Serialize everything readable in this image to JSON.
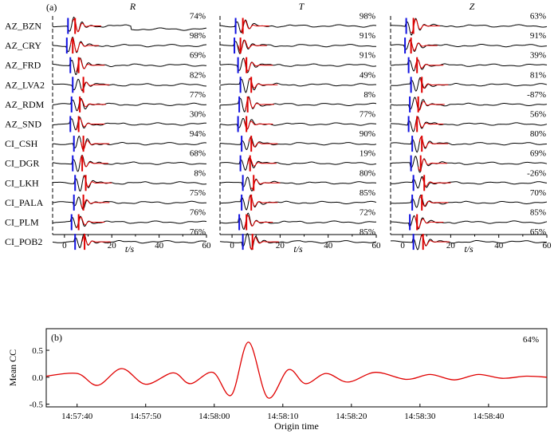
{
  "colors": {
    "observed": "#000000",
    "synthetic": "#e00000",
    "p_pick": "#1010e0",
    "s_pick": "#e00000",
    "mean_cc": "#e00000"
  },
  "panel_a": {
    "label": "(a)",
    "xlabel": "t/s",
    "xticks": [
      "0",
      "20",
      "40",
      "60"
    ],
    "xlim": [
      -5,
      60
    ],
    "stations": [
      "AZ_BZN",
      "AZ_CRY",
      "AZ_FRD",
      "AZ_LVA2",
      "AZ_RDM",
      "AZ_SND",
      "CI_CSH",
      "CI_DGR",
      "CI_LKH",
      "CI_PALA",
      "CI_PLM",
      "CI_POB2"
    ],
    "components": [
      {
        "name": "R",
        "cc": [
          "74%",
          "98%",
          "69%",
          "82%",
          "77%",
          "30%",
          "94%",
          "68%",
          "8%",
          "75%",
          "76%",
          "76%"
        ]
      },
      {
        "name": "T",
        "cc": [
          "98%",
          "91%",
          "91%",
          "49%",
          "8%",
          "77%",
          "90%",
          "19%",
          "80%",
          "85%",
          "72%",
          "85%"
        ]
      },
      {
        "name": "Z",
        "cc": [
          "63%",
          "91%",
          "39%",
          "81%",
          "-87%",
          "56%",
          "80%",
          "69%",
          "-26%",
          "70%",
          "85%",
          "65%"
        ]
      }
    ],
    "p_arrival_s": [
      1.5,
      1.0,
      2.5,
      3.5,
      3.0,
      2.5,
      4.0,
      3.5,
      4.5,
      4.0,
      3.0,
      4.5
    ],
    "s_arrival_s": [
      4.5,
      3.5,
      6.0,
      8.0,
      6.5,
      6.0,
      8.0,
      7.5,
      9.0,
      8.0,
      6.0,
      8.5
    ]
  },
  "chart_data": {
    "type": "line",
    "label": "(b)",
    "ylabel": "Mean CC",
    "xlabel": "Origin time",
    "annotation": "64%",
    "ylim": [
      -0.55,
      0.9
    ],
    "yticks": [
      "-0.5",
      "0.0",
      "0.5"
    ],
    "xticks": [
      "14:57:40",
      "14:57:50",
      "14:58:00",
      "14:58:10",
      "14:58:20",
      "14:58:30",
      "14:58:40"
    ],
    "x_seconds_after_14_57_30": [
      5.5,
      10,
      13,
      16.5,
      20,
      24,
      26.5,
      29.8,
      32.5,
      35,
      37.8,
      40.8,
      43.3,
      46.3,
      49.5,
      53.5,
      58,
      61.5,
      65,
      68.5,
      72,
      75.5,
      78.5
    ],
    "y": [
      0.02,
      0.07,
      -0.15,
      0.16,
      -0.13,
      0.08,
      -0.12,
      0.09,
      -0.33,
      0.65,
      -0.38,
      0.14,
      -0.12,
      0.07,
      -0.09,
      0.09,
      -0.04,
      0.05,
      -0.05,
      0.05,
      -0.02,
      0.02,
      0.0
    ],
    "xlim_seconds": [
      5.5,
      78.5
    ]
  }
}
